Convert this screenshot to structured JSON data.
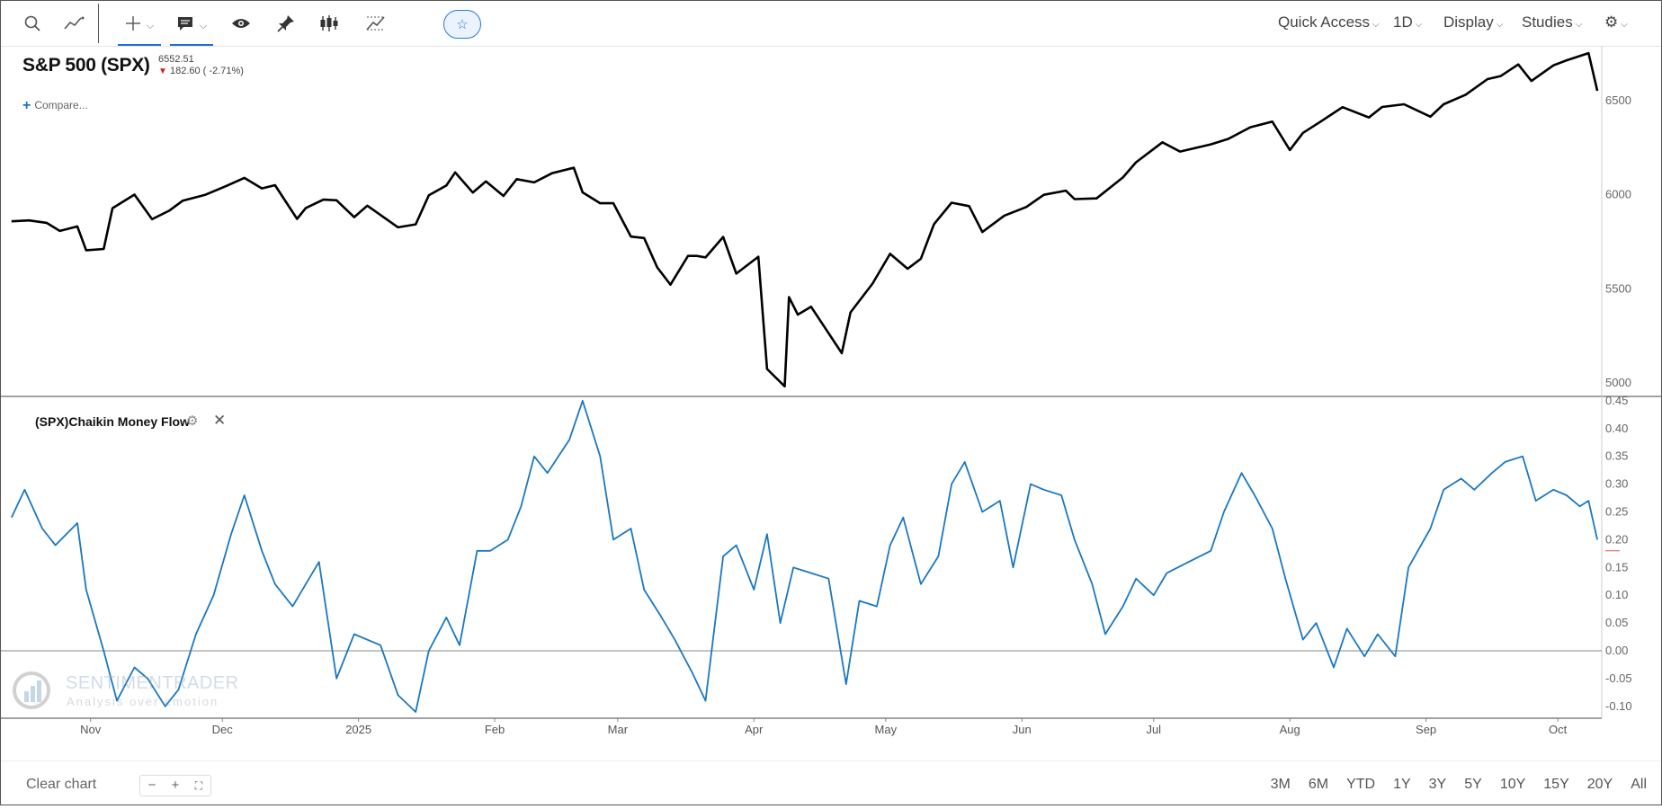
{
  "toolbar": {
    "menus": [
      {
        "label": "Quick Access"
      },
      {
        "label": "1D"
      },
      {
        "label": "Display"
      },
      {
        "label": "Studies"
      }
    ],
    "icons": [
      "search-icon",
      "draw-line-icon",
      "crosshair-icon",
      "comment-icon",
      "eye-icon",
      "pin-icon",
      "candlestick-icon",
      "measure-icon",
      "star-icon",
      "gear-icon"
    ]
  },
  "symbol": {
    "title": "S&P 500 (SPX)",
    "last": "6552.51",
    "change": "182.60 ( -2.71%)",
    "compare_label": "Compare..."
  },
  "study": {
    "label": "(SPX)Chaikin Money Flow"
  },
  "watermark": {
    "brand": "SENTIMENTRADER",
    "tagline": "Analysis over emotion"
  },
  "footer": {
    "clear_label": "Clear chart",
    "zoom_minus": "−",
    "zoom_plus": "+",
    "zoom_fit": "⛶",
    "ranges": [
      "3M",
      "6M",
      "YTD",
      "1Y",
      "3Y",
      "5Y",
      "10Y",
      "15Y",
      "20Y",
      "All"
    ]
  },
  "colors": {
    "price_line": "#000000",
    "cmf_line": "#1a78c2",
    "accent": "#1f6fd1",
    "down": "#d42020"
  },
  "chart_data": [
    {
      "type": "line",
      "title": "S&P 500 (SPX)",
      "ylim": [
        4980,
        6800
      ],
      "y_ticks": [
        5000,
        5500,
        6000,
        6500
      ],
      "x_labels": [
        "Nov",
        "Dec",
        "2025",
        "Feb",
        "Mar",
        "Apr",
        "May",
        "Jun",
        "Jul",
        "Aug",
        "Sep",
        "Oct"
      ],
      "x_range": [
        "2024-10-12",
        "2025-10-11"
      ],
      "series": [
        {
          "values": [
            [
              "2024-10-14",
              5859
            ],
            [
              "2024-10-18",
              5864
            ],
            [
              "2024-10-22",
              5851
            ],
            [
              "2024-10-25",
              5808
            ],
            [
              "2024-10-29",
              5832
            ],
            [
              "2024-10-31",
              5705
            ],
            [
              "2024-11-04",
              5712
            ],
            [
              "2024-11-06",
              5929
            ],
            [
              "2024-11-11",
              6001
            ],
            [
              "2024-11-15",
              5870
            ],
            [
              "2024-11-19",
              5917
            ],
            [
              "2024-11-22",
              5969
            ],
            [
              "2024-11-27",
              5999
            ],
            [
              "2024-12-02",
              6048
            ],
            [
              "2024-12-06",
              6090
            ],
            [
              "2024-12-10",
              6034
            ],
            [
              "2024-12-13",
              6051
            ],
            [
              "2024-12-18",
              5872
            ],
            [
              "2024-12-20",
              5930
            ],
            [
              "2024-12-24",
              5974
            ],
            [
              "2024-12-27",
              5971
            ],
            [
              "2024-12-31",
              5881
            ],
            [
              "2025-01-03",
              5942
            ],
            [
              "2025-01-10",
              5827
            ],
            [
              "2025-01-14",
              5843
            ],
            [
              "2025-01-17",
              5997
            ],
            [
              "2025-01-21",
              6049
            ],
            [
              "2025-01-23",
              6119
            ],
            [
              "2025-01-27",
              6012
            ],
            [
              "2025-01-30",
              6071
            ],
            [
              "2025-02-03",
              5994
            ],
            [
              "2025-02-06",
              6083
            ],
            [
              "2025-02-10",
              6066
            ],
            [
              "2025-02-14",
              6114
            ],
            [
              "2025-02-19",
              6144
            ],
            [
              "2025-02-21",
              6013
            ],
            [
              "2025-02-25",
              5955
            ],
            [
              "2025-02-28",
              5955
            ],
            [
              "2025-03-04",
              5778
            ],
            [
              "2025-03-07",
              5770
            ],
            [
              "2025-03-10",
              5614
            ],
            [
              "2025-03-13",
              5522
            ],
            [
              "2025-03-17",
              5675
            ],
            [
              "2025-03-19",
              5675
            ],
            [
              "2025-03-21",
              5667
            ],
            [
              "2025-03-25",
              5776
            ],
            [
              "2025-03-28",
              5581
            ],
            [
              "2025-04-02",
              5671
            ],
            [
              "2025-04-04",
              5074
            ],
            [
              "2025-04-08",
              4982
            ],
            [
              "2025-04-09",
              5456
            ],
            [
              "2025-04-11",
              5363
            ],
            [
              "2025-04-14",
              5405
            ],
            [
              "2025-04-21",
              5158
            ],
            [
              "2025-04-23",
              5375
            ],
            [
              "2025-04-28",
              5528
            ],
            [
              "2025-05-02",
              5686
            ],
            [
              "2025-05-06",
              5607
            ],
            [
              "2025-05-09",
              5660
            ],
            [
              "2025-05-12",
              5844
            ],
            [
              "2025-05-16",
              5958
            ],
            [
              "2025-05-20",
              5940
            ],
            [
              "2025-05-23",
              5802
            ],
            [
              "2025-05-28",
              5889
            ],
            [
              "2025-06-02",
              5935
            ],
            [
              "2025-06-06",
              6000
            ],
            [
              "2025-06-11",
              6022
            ],
            [
              "2025-06-13",
              5977
            ],
            [
              "2025-06-18",
              5981
            ],
            [
              "2025-06-24",
              6092
            ],
            [
              "2025-06-27",
              6173
            ],
            [
              "2025-07-03",
              6279
            ],
            [
              "2025-07-07",
              6230
            ],
            [
              "2025-07-14",
              6268
            ],
            [
              "2025-07-18",
              6297
            ],
            [
              "2025-07-23",
              6359
            ],
            [
              "2025-07-28",
              6389
            ],
            [
              "2025-08-01",
              6238
            ],
            [
              "2025-08-04",
              6329
            ],
            [
              "2025-08-08",
              6389
            ],
            [
              "2025-08-13",
              6466
            ],
            [
              "2025-08-19",
              6411
            ],
            [
              "2025-08-22",
              6467
            ],
            [
              "2025-08-27",
              6481
            ],
            [
              "2025-09-02",
              6415
            ],
            [
              "2025-09-05",
              6481
            ],
            [
              "2025-09-10",
              6532
            ],
            [
              "2025-09-15",
              6615
            ],
            [
              "2025-09-18",
              6631
            ],
            [
              "2025-09-22",
              6693
            ],
            [
              "2025-09-25",
              6605
            ],
            [
              "2025-09-30",
              6688
            ],
            [
              "2025-10-03",
              6715
            ],
            [
              "2025-10-08",
              6753
            ],
            [
              "2025-10-10",
              6552.51
            ]
          ]
        }
      ]
    },
    {
      "type": "line",
      "title": "(SPX)Chaikin Money Flow",
      "ylim": [
        -0.12,
        0.46
      ],
      "y_ticks": [
        -0.1,
        -0.05,
        0.0,
        0.05,
        0.1,
        0.15,
        0.2,
        0.25,
        0.3,
        0.35,
        0.4,
        0.45
      ],
      "zero_line": 0,
      "series": [
        {
          "values": [
            [
              "2024-10-14",
              0.24
            ],
            [
              "2024-10-17",
              0.29
            ],
            [
              "2024-10-21",
              0.22
            ],
            [
              "2024-10-24",
              0.19
            ],
            [
              "2024-10-29",
              0.23
            ],
            [
              "2024-10-31",
              0.11
            ],
            [
              "2024-11-04",
              0.0
            ],
            [
              "2024-11-07",
              -0.09
            ],
            [
              "2024-11-11",
              -0.03
            ],
            [
              "2024-11-14",
              -0.05
            ],
            [
              "2024-11-18",
              -0.1
            ],
            [
              "2024-11-21",
              -0.07
            ],
            [
              "2024-11-25",
              0.03
            ],
            [
              "2024-11-29",
              0.1
            ],
            [
              "2024-12-03",
              0.21
            ],
            [
              "2024-12-06",
              0.28
            ],
            [
              "2024-12-10",
              0.18
            ],
            [
              "2024-12-13",
              0.12
            ],
            [
              "2024-12-17",
              0.08
            ],
            [
              "2024-12-20",
              0.12
            ],
            [
              "2024-12-23",
              0.16
            ],
            [
              "2024-12-27",
              -0.05
            ],
            [
              "2024-12-31",
              0.03
            ],
            [
              "2025-01-06",
              0.01
            ],
            [
              "2025-01-10",
              -0.08
            ],
            [
              "2025-01-14",
              -0.11
            ],
            [
              "2025-01-17",
              0.0
            ],
            [
              "2025-01-21",
              0.06
            ],
            [
              "2025-01-24",
              0.01
            ],
            [
              "2025-01-28",
              0.18
            ],
            [
              "2025-01-31",
              0.18
            ],
            [
              "2025-02-04",
              0.2
            ],
            [
              "2025-02-07",
              0.26
            ],
            [
              "2025-02-10",
              0.35
            ],
            [
              "2025-02-13",
              0.32
            ],
            [
              "2025-02-18",
              0.38
            ],
            [
              "2025-02-21",
              0.45
            ],
            [
              "2025-02-25",
              0.35
            ],
            [
              "2025-02-28",
              0.2
            ],
            [
              "2025-03-04",
              0.22
            ],
            [
              "2025-03-07",
              0.11
            ],
            [
              "2025-03-11",
              0.06
            ],
            [
              "2025-03-14",
              0.02
            ],
            [
              "2025-03-18",
              -0.04
            ],
            [
              "2025-03-21",
              -0.09
            ],
            [
              "2025-03-25",
              0.17
            ],
            [
              "2025-03-28",
              0.19
            ],
            [
              "2025-04-01",
              0.11
            ],
            [
              "2025-04-04",
              0.21
            ],
            [
              "2025-04-07",
              0.05
            ],
            [
              "2025-04-10",
              0.15
            ],
            [
              "2025-04-14",
              0.14
            ],
            [
              "2025-04-18",
              0.13
            ],
            [
              "2025-04-22",
              -0.06
            ],
            [
              "2025-04-25",
              0.09
            ],
            [
              "2025-04-29",
              0.08
            ],
            [
              "2025-05-02",
              0.19
            ],
            [
              "2025-05-05",
              0.24
            ],
            [
              "2025-05-09",
              0.12
            ],
            [
              "2025-05-13",
              0.17
            ],
            [
              "2025-05-16",
              0.3
            ],
            [
              "2025-05-19",
              0.34
            ],
            [
              "2025-05-23",
              0.25
            ],
            [
              "2025-05-27",
              0.27
            ],
            [
              "2025-05-30",
              0.15
            ],
            [
              "2025-06-03",
              0.3
            ],
            [
              "2025-06-06",
              0.29
            ],
            [
              "2025-06-10",
              0.28
            ],
            [
              "2025-06-13",
              0.2
            ],
            [
              "2025-06-17",
              0.12
            ],
            [
              "2025-06-20",
              0.03
            ],
            [
              "2025-06-24",
              0.08
            ],
            [
              "2025-06-27",
              0.13
            ],
            [
              "2025-07-01",
              0.1
            ],
            [
              "2025-07-04",
              0.14
            ],
            [
              "2025-07-09",
              0.16
            ],
            [
              "2025-07-14",
              0.18
            ],
            [
              "2025-07-17",
              0.25
            ],
            [
              "2025-07-21",
              0.32
            ],
            [
              "2025-07-24",
              0.28
            ],
            [
              "2025-07-28",
              0.22
            ],
            [
              "2025-07-31",
              0.13
            ],
            [
              "2025-08-04",
              0.02
            ],
            [
              "2025-08-07",
              0.05
            ],
            [
              "2025-08-11",
              -0.03
            ],
            [
              "2025-08-14",
              0.04
            ],
            [
              "2025-08-18",
              -0.01
            ],
            [
              "2025-08-21",
              0.03
            ],
            [
              "2025-08-25",
              -0.01
            ],
            [
              "2025-08-28",
              0.15
            ],
            [
              "2025-09-02",
              0.22
            ],
            [
              "2025-09-05",
              0.29
            ],
            [
              "2025-09-09",
              0.31
            ],
            [
              "2025-09-12",
              0.29
            ],
            [
              "2025-09-16",
              0.32
            ],
            [
              "2025-09-19",
              0.34
            ],
            [
              "2025-09-23",
              0.35
            ],
            [
              "2025-09-26",
              0.27
            ],
            [
              "2025-09-30",
              0.29
            ],
            [
              "2025-10-03",
              0.28
            ],
            [
              "2025-10-06",
              0.26
            ],
            [
              "2025-10-08",
              0.27
            ],
            [
              "2025-10-10",
              0.2
            ]
          ]
        }
      ]
    }
  ]
}
